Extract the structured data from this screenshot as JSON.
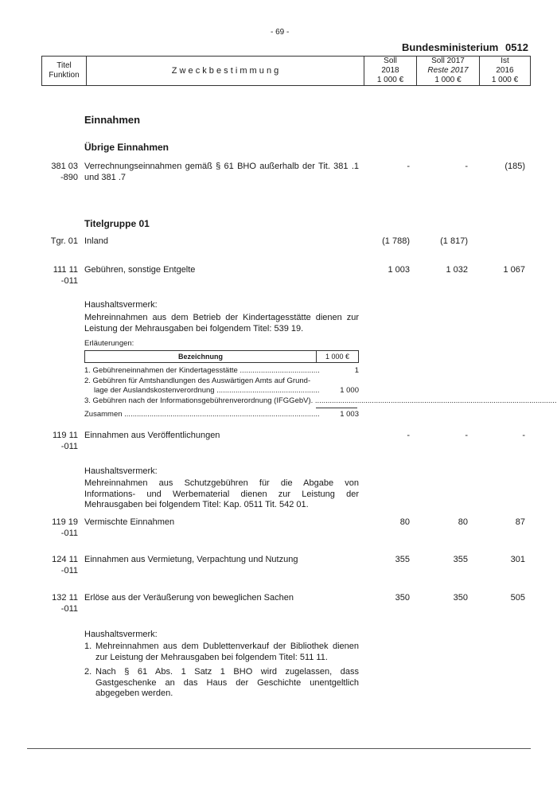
{
  "page_number": "- 69 -",
  "header": {
    "ministry": "Bundesministerium",
    "chapter": "0512"
  },
  "table_header": {
    "titel": "Titel",
    "funktion": "Funktion",
    "zweck": "Z w e c k b e s t i m m u n g",
    "c1": [
      "Soll",
      "2018",
      "1 000 €"
    ],
    "c2": [
      "Soll 2017",
      "Reste 2017",
      "1 000 €"
    ],
    "c3": [
      "Ist",
      "2016",
      "1 000 €"
    ]
  },
  "sections": {
    "einnahmen": "Einnahmen",
    "uebrige": "Übrige Einnahmen",
    "titelgruppe": "Titelgruppe 01"
  },
  "rows": [
    {
      "titel": "381 03",
      "funktion": "-890",
      "text": "Verrechnungseinnahmen gemäß § 61 BHO außerhalb der Tit. 381 .1 und 381 .7",
      "v1": "-",
      "v2": "-",
      "v3": "(185)"
    },
    {
      "titel": "Tgr. 01",
      "funktion": "",
      "text": "Inland",
      "v1": "(1 788)",
      "v2": "(1 817)",
      "v3": ""
    },
    {
      "titel": "111 11",
      "funktion": "-011",
      "text": "Gebühren, sonstige Entgelte",
      "v1": "1 003",
      "v2": "1 032",
      "v3": "1 067"
    },
    {
      "titel": "119 11",
      "funktion": "-011",
      "text": "Einnahmen aus Veröffentlichungen",
      "v1": "-",
      "v2": "-",
      "v3": "-"
    },
    {
      "titel": "119 19",
      "funktion": "-011",
      "text": "Vermischte Einnahmen",
      "v1": "80",
      "v2": "80",
      "v3": "87"
    },
    {
      "titel": "124 11",
      "funktion": "-011",
      "text": "Einnahmen aus Vermietung, Verpachtung und Nutzung",
      "v1": "355",
      "v2": "355",
      "v3": "301"
    },
    {
      "titel": "132 11",
      "funktion": "-011",
      "text": "Erlöse aus der Veräußerung von beweglichen Sachen",
      "v1": "350",
      "v2": "350",
      "v3": "505"
    }
  ],
  "vermerk_label": "Haushaltsvermerk:",
  "vermerk_111": "Mehreinnahmen aus dem Betrieb der Kindertagesstätte dienen zur Leistung der Mehrausgaben bei folgendem Titel: 539 19.",
  "erlaeuterungen": {
    "label": "Erläuterungen:",
    "col_name": "Bezeichnung",
    "col_unit": "1 000 €",
    "items": [
      {
        "text": "1. Gebühreneinnahmen der Kindertagesstätte",
        "value": "1"
      },
      {
        "text1": "2. Gebühren für Amtshandlungen des Auswärtigen Amts auf Grund-",
        "text": "lage der Auslandskostenverordnung",
        "value": "1 000"
      },
      {
        "text": "3. Gebühren nach der Informationsgebührenverordnung (IFGGebV).",
        "value": "2"
      }
    ],
    "total_label": "Zusammen",
    "total": "1 003"
  },
  "vermerk_119": "Mehreinnahmen aus Schutzgebühren für die Abgabe von Informations- und Werbematerial dienen zur Leistung der Mehrausgaben bei folgendem Titel: Kap. 0511 Tit. 542 01.",
  "vermerk_132": [
    {
      "n": "1.",
      "t": "Mehreinnahmen aus dem Dublettenverkauf der Bibliothek dienen zur Leistung der Mehrausgaben bei folgendem Titel: 511 11."
    },
    {
      "n": "2.",
      "t": "Nach § 61 Abs. 1 Satz 1 BHO wird zugelassen, dass Gastgeschenke an das Haus der Geschichte unentgeltlich abgegeben werden."
    }
  ]
}
